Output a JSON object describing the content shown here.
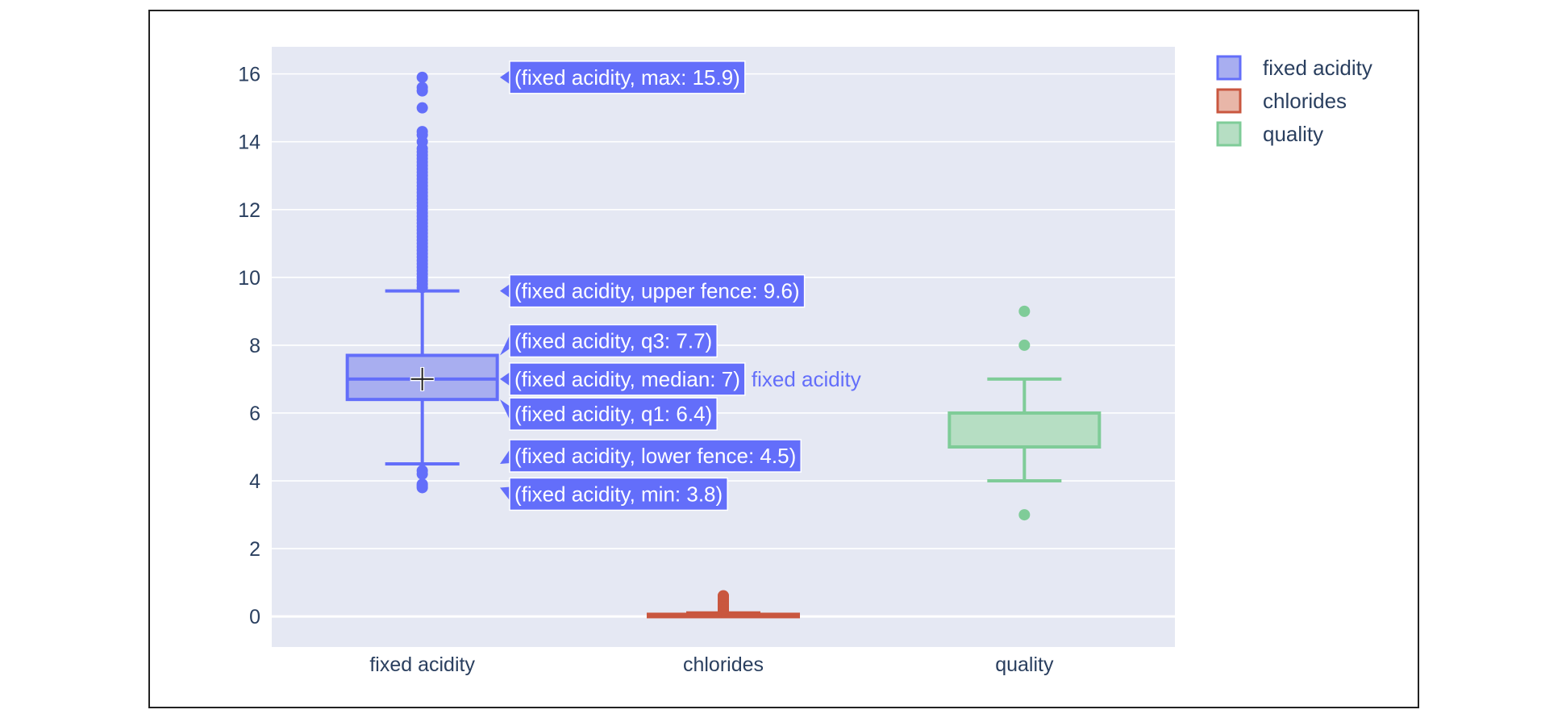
{
  "chart_data": {
    "type": "box",
    "categories": [
      "fixed acidity",
      "chlorides",
      "quality"
    ],
    "ylim": [
      -0.9,
      16.8
    ],
    "yticks": [
      0,
      2,
      4,
      6,
      8,
      10,
      12,
      14,
      16
    ],
    "grid": true,
    "legend_position": "top-right",
    "series": [
      {
        "name": "fixed acidity",
        "color": "#636efa",
        "fill": "#a8aef0",
        "min": 3.8,
        "lower_fence": 4.5,
        "q1": 6.4,
        "median": 7,
        "q3": 7.7,
        "upper_fence": 9.6,
        "max": 15.9,
        "outliers": [
          3.8,
          3.85,
          3.9,
          4.2,
          4.3,
          9.7,
          9.8,
          9.9,
          10.0,
          10.1,
          10.2,
          10.3,
          10.4,
          10.5,
          10.6,
          10.7,
          10.8,
          10.9,
          11.0,
          11.1,
          11.2,
          11.3,
          11.4,
          11.5,
          11.6,
          11.7,
          11.8,
          11.9,
          12.0,
          12.1,
          12.2,
          12.3,
          12.4,
          12.5,
          12.6,
          12.7,
          12.8,
          12.9,
          13.0,
          13.1,
          13.2,
          13.3,
          13.4,
          13.5,
          13.6,
          13.7,
          13.8,
          14.0,
          14.2,
          14.3,
          15.0,
          15.5,
          15.6,
          15.9
        ]
      },
      {
        "name": "chlorides",
        "color": "#c9573f",
        "fill": "#e8b6a8",
        "lower_fence": 0.012,
        "q1": 0.038,
        "median": 0.047,
        "q3": 0.065,
        "upper_fence": 0.105,
        "outliers": [
          0.12,
          0.15,
          0.18,
          0.2,
          0.22,
          0.25,
          0.28,
          0.3,
          0.33,
          0.36,
          0.4,
          0.45,
          0.5,
          0.55,
          0.6,
          0.611
        ]
      },
      {
        "name": "quality",
        "color": "#7fcc98",
        "fill": "#b6dec3",
        "lower_fence": 4,
        "q1": 5,
        "median": 6,
        "q3": 6,
        "upper_fence": 7,
        "outliers": [
          3,
          8,
          9
        ]
      }
    ],
    "hover_labels": [
      "(fixed acidity, max: 15.9)",
      "(fixed acidity, upper fence: 9.6)",
      "(fixed acidity, q3: 7.7)",
      "(fixed acidity, median: 7)",
      "(fixed acidity, q1: 6.4)",
      "(fixed acidity, lower fence: 4.5)",
      "(fixed acidity, min: 3.8)"
    ],
    "hover_trace_name": "fixed acidity"
  }
}
